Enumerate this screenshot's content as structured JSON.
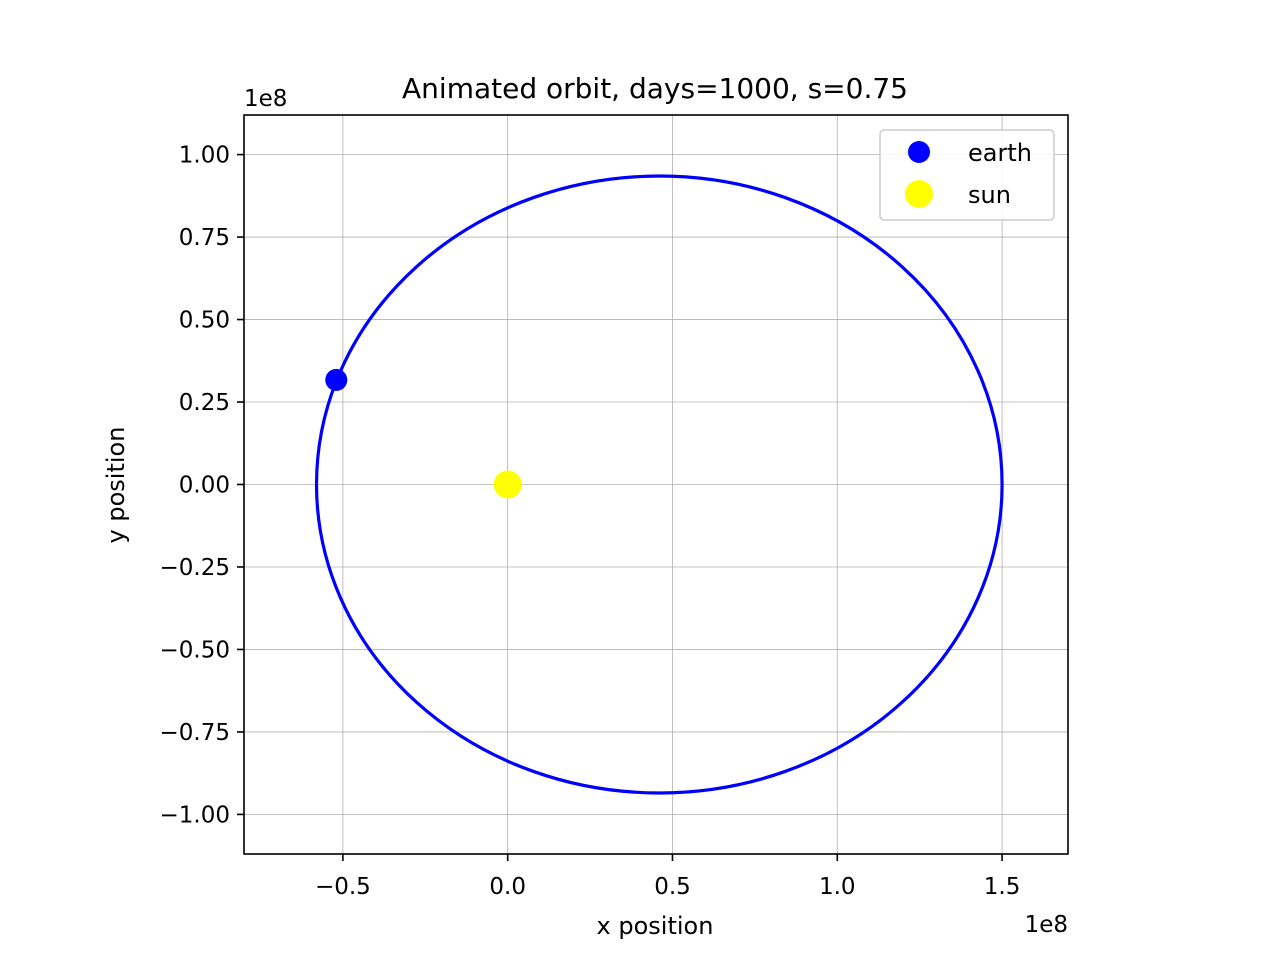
{
  "chart_data": {
    "type": "line",
    "title": "Animated orbit, days=1000, s=0.75",
    "xlabel": "x position",
    "ylabel": "y position",
    "x_offset_label": "1e8",
    "y_offset_label": "1e8",
    "xlim": [
      -0.8,
      1.7
    ],
    "ylim": [
      -1.12,
      1.12
    ],
    "xticks": [
      -0.5,
      0.0,
      0.5,
      1.0,
      1.5
    ],
    "xtick_labels": [
      "−0.5",
      "0.0",
      "0.5",
      "1.0",
      "1.5"
    ],
    "yticks": [
      1.0,
      0.75,
      0.5,
      0.25,
      0.0,
      -0.25,
      -0.5,
      -0.75,
      -1.0
    ],
    "ytick_labels": [
      "1.00",
      "0.75",
      "0.50",
      "0.25",
      "0.00",
      "−0.25",
      "−0.50",
      "−0.75",
      "−1.00"
    ],
    "grid": true,
    "legend_position": "upper right",
    "orbit": {
      "color": "#0000ff",
      "center": [
        0.46,
        0.0
      ],
      "semi_major": 1.04,
      "semi_minor": 0.935,
      "note_units": "1e8"
    },
    "series": [
      {
        "name": "earth",
        "type": "point",
        "x": -0.52,
        "y": 0.317,
        "color": "#0000ff"
      },
      {
        "name": "sun",
        "type": "point",
        "x": 0.0,
        "y": 0.0,
        "color": "#ffff00"
      }
    ]
  }
}
